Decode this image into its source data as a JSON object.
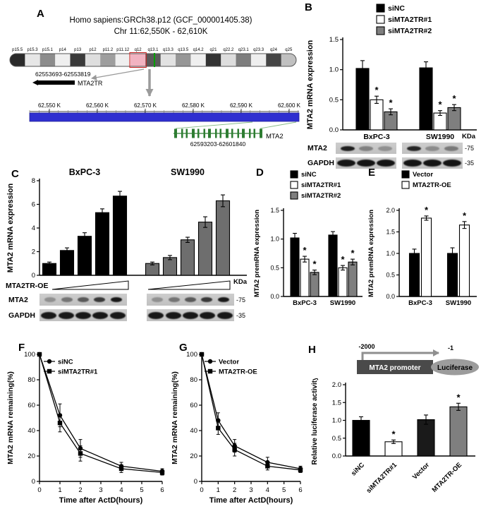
{
  "panels": {
    "A": {
      "label": "A",
      "title_line1": "Homo sapiens:GRCh38.p12 (GCF_000001405.38)",
      "title_line2": "Chr 11:62,550K - 62,610K",
      "band_labels": [
        "p15.5",
        "p15.3",
        "p15.1",
        "p14",
        "p13",
        "p12",
        "p11.2",
        "p11.12",
        "q12",
        "q13.1",
        "q13.3",
        "q13.5",
        "q14.2",
        "q21",
        "q22.2",
        "q23.1",
        "q23.3",
        "q24",
        "q25"
      ],
      "region_coords": "62553693-62553819",
      "region_gene": "MTA2TR",
      "ruler_labels": [
        "62,550 K",
        "62,560 K",
        "62,570 K",
        "62,580 K",
        "62,590 K",
        "62,600 K"
      ],
      "gene_coords": "62593203-62601840",
      "gene_name": "MTA2"
    },
    "B": {
      "label": "B",
      "kda": "KDa",
      "blots": [
        {
          "protein": "MTA2",
          "marker": "-75",
          "band_w": 20,
          "band_h": 7,
          "lanes": [
            [
              0.92,
              0.38,
              0.3
            ],
            [
              0.88,
              0.32,
              0.42
            ]
          ]
        },
        {
          "protein": "GAPDH",
          "marker": "-35",
          "band_w": 26,
          "band_h": 10,
          "lanes": [
            [
              0.97,
              0.97,
              0.97
            ],
            [
              0.97,
              0.97,
              0.97
            ]
          ]
        }
      ]
    },
    "C": {
      "label": "C",
      "dose_label": "MTA2TR-OE",
      "kda": "KDa",
      "blots": [
        {
          "protein": "MTA2",
          "marker": "-75",
          "band_w": 16,
          "band_h": 7,
          "lanes": [
            [
              0.3,
              0.45,
              0.6,
              0.78,
              0.95
            ],
            [
              0.3,
              0.45,
              0.6,
              0.78,
              0.95
            ]
          ]
        },
        {
          "protein": "GAPDH",
          "marker": "-35",
          "band_w": 22,
          "band_h": 10,
          "lanes": [
            [
              0.95,
              0.95,
              0.95,
              0.95,
              0.95
            ],
            [
              0.95,
              0.95,
              0.95,
              0.95,
              0.95
            ]
          ]
        }
      ]
    },
    "D": {
      "label": "D"
    },
    "E": {
      "label": "E"
    },
    "F": {
      "label": "F"
    },
    "G": {
      "label": "G"
    },
    "H": {
      "label": "H",
      "schematic": {
        "start": "-2000",
        "end": "-1",
        "promoter": "MTA2 promoter",
        "reporter": "Luciferase"
      }
    }
  },
  "chart_data": [
    {
      "id": "B",
      "type": "bar",
      "ylabel": "MTA2 mRNA expression",
      "ylim": [
        0,
        1.5
      ],
      "yticks": [
        0,
        0.5,
        1.0,
        1.5
      ],
      "ytick_labels": [
        "0.0",
        "0.5",
        "1.0",
        "1.5"
      ],
      "categories": [
        "BxPC-3",
        "SW1990"
      ],
      "series": [
        {
          "name": "siNC",
          "color": "#000000",
          "values": [
            1.02,
            1.03
          ],
          "errors": [
            0.13,
            0.1
          ],
          "sig": [
            false,
            false
          ]
        },
        {
          "name": "siMTA2TR#1",
          "color": "#ffffff",
          "values": [
            0.5,
            0.28
          ],
          "errors": [
            0.06,
            0.04
          ],
          "sig": [
            true,
            true
          ]
        },
        {
          "name": "siMTA2TR#2",
          "color": "#7f7f7f",
          "values": [
            0.3,
            0.37
          ],
          "errors": [
            0.05,
            0.05
          ],
          "sig": [
            true,
            true
          ]
        }
      ]
    },
    {
      "id": "C",
      "type": "bar",
      "ylabel": "MTA2 mRNA expression",
      "ylim": [
        0,
        8
      ],
      "yticks": [
        0,
        2,
        4,
        6,
        8
      ],
      "ytick_labels": [
        "0",
        "2",
        "4",
        "6",
        "8"
      ],
      "groups": [
        {
          "name": "BxPC-3",
          "color": "#000000",
          "values": [
            1.0,
            2.1,
            3.3,
            5.3,
            6.7
          ],
          "errors": [
            0.12,
            0.22,
            0.3,
            0.32,
            0.4
          ]
        },
        {
          "name": "SW1990",
          "color": "#6e6e6e",
          "values": [
            1.0,
            1.5,
            3.0,
            4.5,
            6.3
          ],
          "errors": [
            0.12,
            0.18,
            0.22,
            0.45,
            0.5
          ]
        }
      ]
    },
    {
      "id": "D",
      "type": "bar",
      "ylabel": "MTA2 premRNA expression",
      "ylim": [
        0,
        1.5
      ],
      "yticks": [
        0,
        0.5,
        1.0,
        1.5
      ],
      "ytick_labels": [
        "0.0",
        "0.5",
        "1.0",
        "1.5"
      ],
      "categories": [
        "BxPC-3",
        "SW1990"
      ],
      "series": [
        {
          "name": "siNC",
          "color": "#000000",
          "values": [
            1.02,
            1.07
          ],
          "errors": [
            0.08,
            0.06
          ],
          "sig": [
            false,
            false
          ]
        },
        {
          "name": "siMTA2TR#1",
          "color": "#ffffff",
          "values": [
            0.65,
            0.5
          ],
          "errors": [
            0.05,
            0.04
          ],
          "sig": [
            true,
            true
          ]
        },
        {
          "name": "siMTA2TR#2",
          "color": "#7f7f7f",
          "values": [
            0.42,
            0.6
          ],
          "errors": [
            0.04,
            0.05
          ],
          "sig": [
            true,
            true
          ]
        }
      ]
    },
    {
      "id": "E",
      "type": "bar",
      "ylabel": "MTA2 premRNA expression",
      "ylim": [
        0,
        2.0
      ],
      "yticks": [
        0,
        0.5,
        1.0,
        1.5,
        2.0
      ],
      "ytick_labels": [
        "0.0",
        "0.5",
        "1.0",
        "1.5",
        "2.0"
      ],
      "categories": [
        "BxPC-3",
        "SW1990"
      ],
      "series": [
        {
          "name": "Vector",
          "color": "#000000",
          "values": [
            1.0,
            1.0
          ],
          "errors": [
            0.1,
            0.13
          ],
          "sig": [
            false,
            false
          ]
        },
        {
          "name": "MTA2TR-OE",
          "color": "#ffffff",
          "values": [
            1.82,
            1.66
          ],
          "errors": [
            0.05,
            0.08
          ],
          "sig": [
            true,
            true
          ]
        }
      ]
    },
    {
      "id": "F",
      "type": "line",
      "xlabel": "Time after ActD(hours)",
      "ylabel": "MTA2 mRNA remaining(%)",
      "xlim": [
        0,
        6
      ],
      "xticks": [
        0,
        1,
        2,
        3,
        4,
        5,
        6
      ],
      "ylim": [
        0,
        100
      ],
      "yticks": [
        0,
        20,
        40,
        60,
        80,
        100
      ],
      "x": [
        0,
        1,
        2,
        4,
        6
      ],
      "series": [
        {
          "name": "siNC",
          "marker": "circle",
          "color": "#000000",
          "values": [
            100,
            52,
            26,
            12,
            8
          ],
          "errors": [
            0,
            9,
            7,
            3,
            2
          ]
        },
        {
          "name": "siMTA2TR#1",
          "marker": "square",
          "color": "#000000",
          "values": [
            100,
            46,
            22,
            10,
            7
          ],
          "errors": [
            0,
            7,
            6,
            3,
            2
          ]
        }
      ]
    },
    {
      "id": "G",
      "type": "line",
      "xlabel": "Time after ActD(hours)",
      "ylabel": "MTA2 mRNA remaining(%)",
      "xlim": [
        0,
        6
      ],
      "xticks": [
        0,
        1,
        2,
        3,
        4,
        5,
        6
      ],
      "ylim": [
        0,
        100
      ],
      "yticks": [
        0,
        20,
        40,
        60,
        80,
        100
      ],
      "x": [
        0,
        1,
        2,
        4,
        6
      ],
      "series": [
        {
          "name": "Vector",
          "marker": "circle",
          "color": "#000000",
          "values": [
            100,
            48,
            28,
            15,
            10
          ],
          "errors": [
            0,
            6,
            5,
            4,
            2
          ]
        },
        {
          "name": "MTA2TR-OE",
          "marker": "square",
          "color": "#000000",
          "values": [
            100,
            42,
            25,
            12,
            9
          ],
          "errors": [
            0,
            5,
            5,
            3,
            2
          ]
        }
      ]
    },
    {
      "id": "H",
      "type": "bar",
      "ylabel": "Relative luciferase activity",
      "ylim": [
        0,
        2.0
      ],
      "yticks": [
        0,
        0.5,
        1.0,
        1.5,
        2.0
      ],
      "ytick_labels": [
        "0.0",
        "0.5",
        "1.0",
        "1.5",
        "2.0"
      ],
      "categories": [
        "siNC",
        "siMTA2TR#1",
        "Vector",
        "MTA2TR-OE"
      ],
      "values": [
        1.0,
        0.4,
        1.02,
        1.38
      ],
      "errors": [
        0.1,
        0.05,
        0.13,
        0.1
      ],
      "colors": [
        "#000000",
        "#ffffff",
        "#1a1a1a",
        "#7f7f7f"
      ],
      "sig": [
        false,
        true,
        false,
        true
      ]
    }
  ]
}
